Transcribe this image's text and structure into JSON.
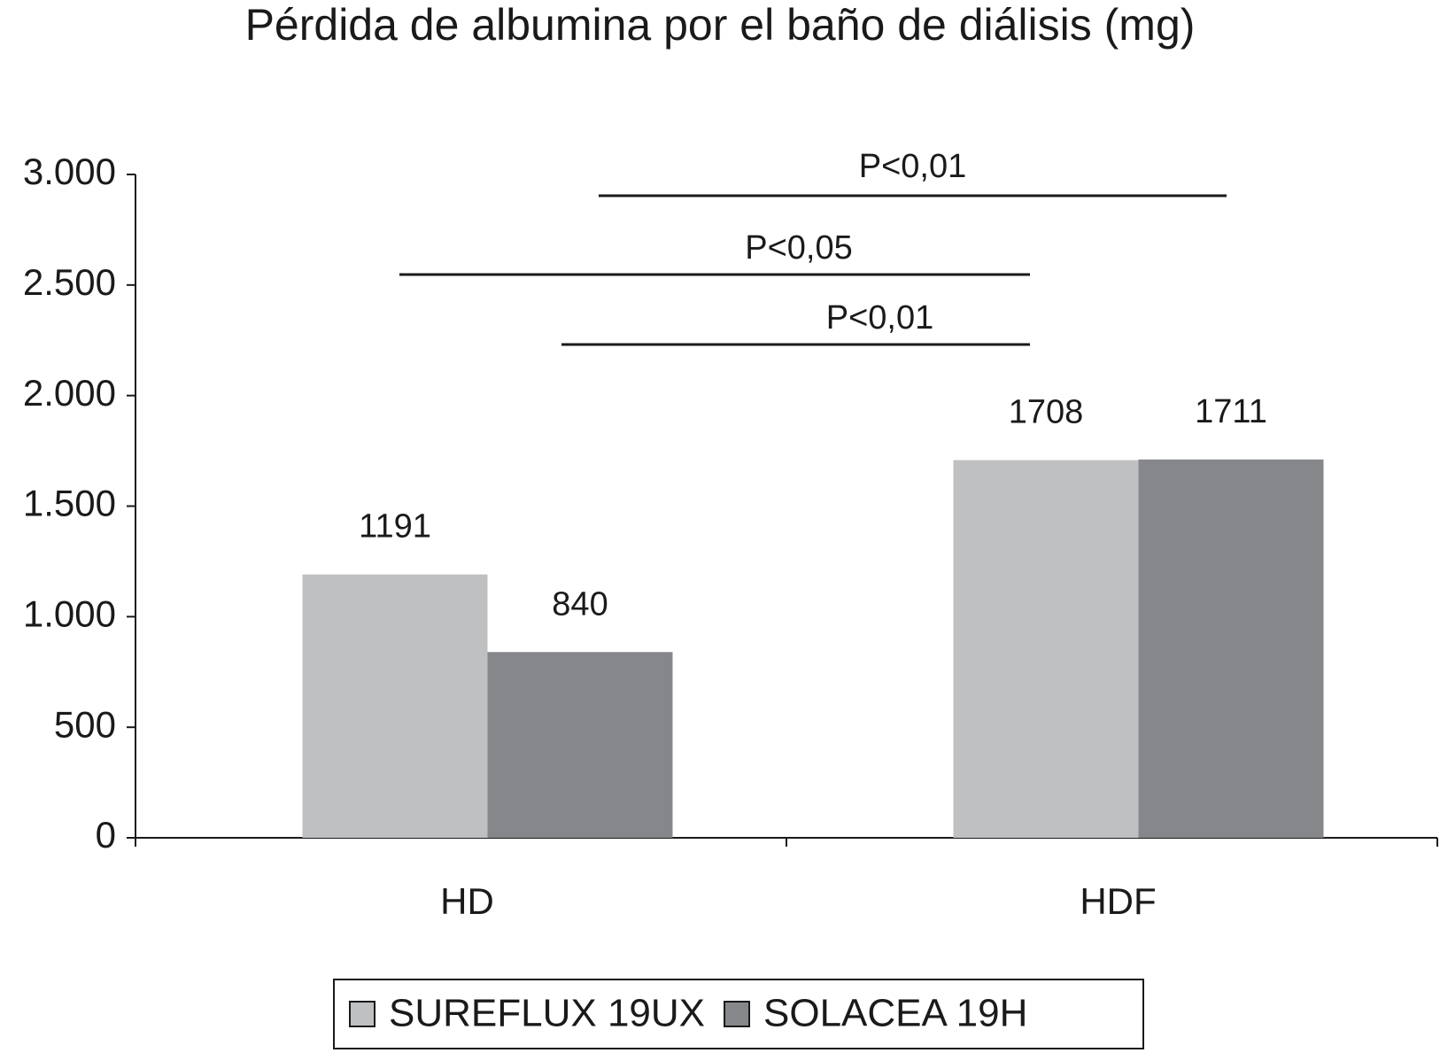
{
  "chart_data": {
    "type": "bar",
    "title": "Pérdida de albumina por el baño de diálisis (mg)",
    "categories": [
      "HD",
      "HDF"
    ],
    "series": [
      {
        "name": "SUREFLUX 19UX",
        "color": "#bfc0c1",
        "values": [
          1191,
          1708
        ]
      },
      {
        "name": "SOLACEA 19H",
        "color": "#86878a",
        "values": [
          840,
          1711
        ]
      }
    ],
    "ylim": [
      0,
      3000
    ],
    "yticks": [
      0,
      500,
      {
        "value": 1000,
        "label": "1.000"
      },
      {
        "value": 1500,
        "label": "1.500"
      },
      {
        "value": 2000,
        "label": "2.000"
      },
      {
        "value": 2500,
        "label": "2.500"
      },
      {
        "value": 3000,
        "label": "3.000"
      }
    ],
    "annotations": [
      "P<0,01",
      "P<0,05",
      "P<0,01"
    ],
    "grid": false,
    "legend": "bottom"
  }
}
